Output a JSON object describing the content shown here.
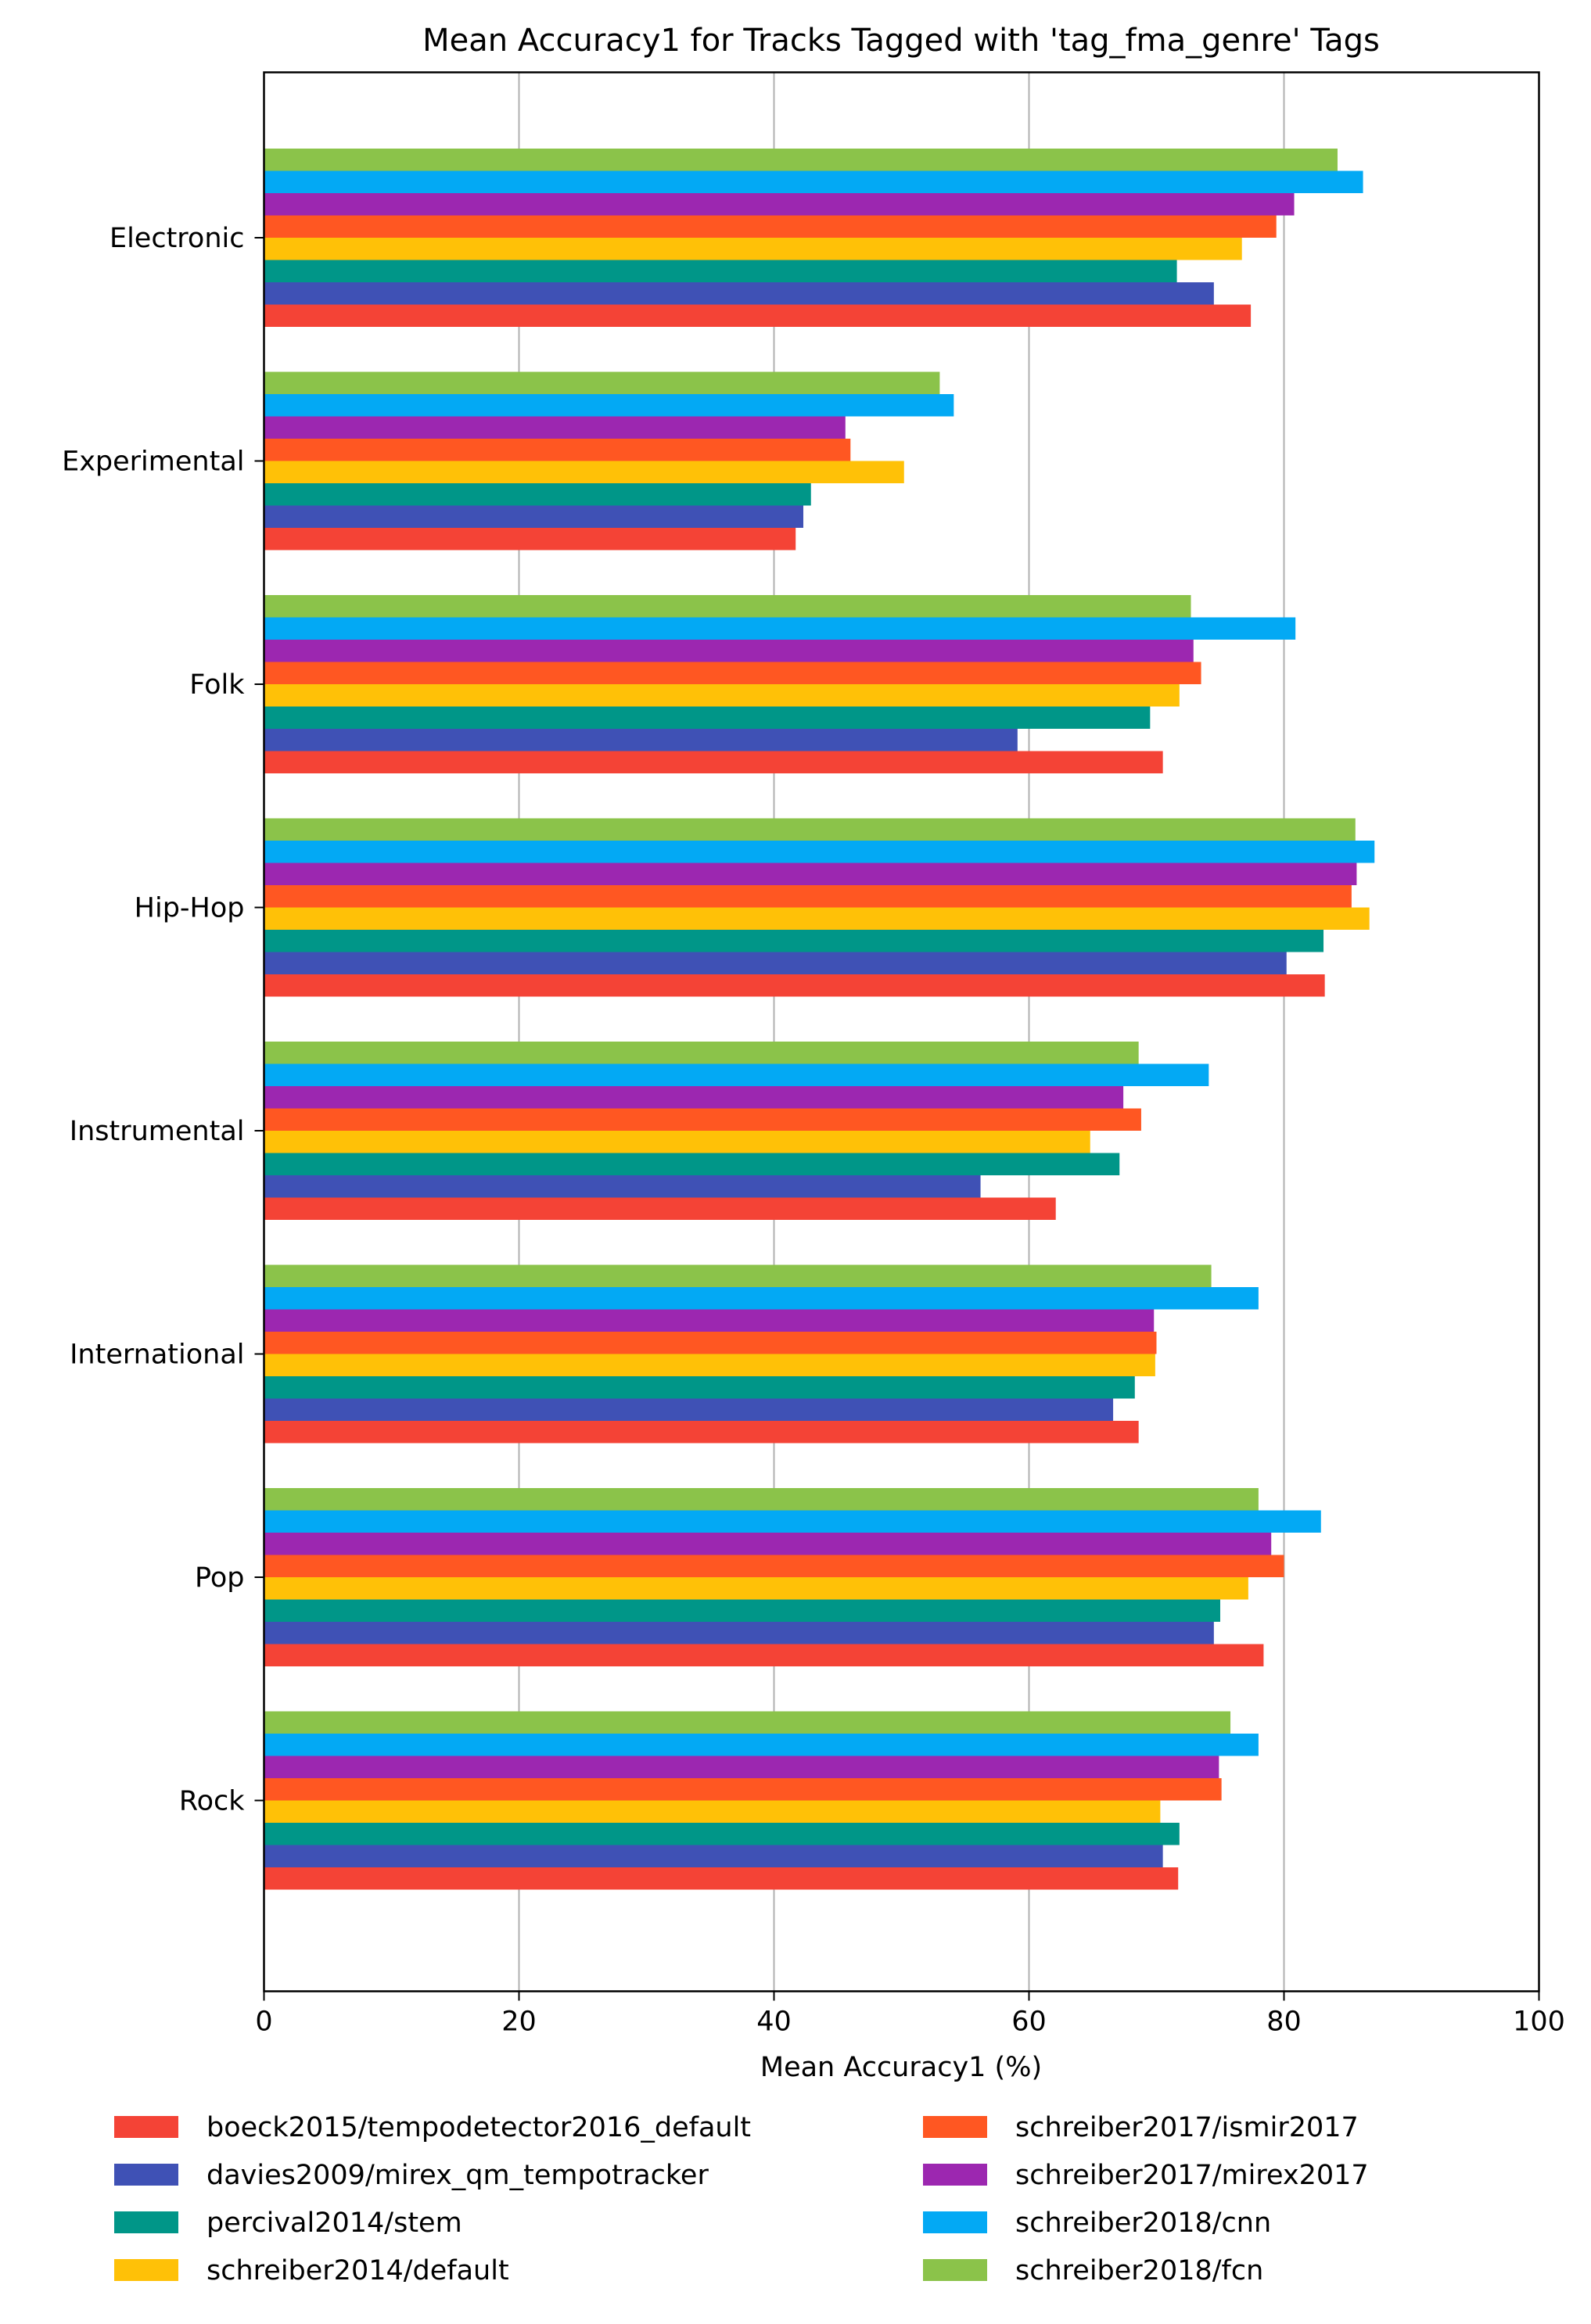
{
  "chart_data": {
    "type": "bar",
    "orientation": "horizontal",
    "title": "Mean Accuracy1 for Tracks Tagged with 'tag_fma_genre' Tags",
    "xlabel": "Mean Accuracy1 (%)",
    "ylabel": "",
    "xlim": [
      0,
      100
    ],
    "xticks": [
      "0",
      "20",
      "40",
      "60",
      "80",
      "100"
    ],
    "grid": "vertical gridlines",
    "legend_position": "bottom, 2 columns",
    "categories": [
      "Electronic",
      "Experimental",
      "Folk",
      "Hip-Hop",
      "Instrumental",
      "International",
      "Pop",
      "Rock"
    ],
    "series": [
      {
        "name": "boeck2015/tempodetector2016_default",
        "color": "#f44336",
        "values": [
          77.4,
          41.7,
          70.5,
          83.2,
          62.1,
          68.6,
          78.4,
          71.7
        ]
      },
      {
        "name": "davies2009/mirex_qm_tempotracker",
        "color": "#3f51b5",
        "values": [
          74.5,
          42.3,
          59.1,
          80.2,
          56.2,
          66.6,
          74.5,
          70.5
        ]
      },
      {
        "name": "percival2014/stem",
        "color": "#009688",
        "values": [
          71.6,
          42.9,
          69.5,
          83.1,
          67.1,
          68.3,
          75.0,
          71.8
        ]
      },
      {
        "name": "schreiber2014/default",
        "color": "#ffc107",
        "values": [
          76.7,
          50.2,
          71.8,
          86.7,
          64.8,
          69.9,
          77.2,
          70.3
        ]
      },
      {
        "name": "schreiber2017/ismir2017",
        "color": "#ff5722",
        "values": [
          79.4,
          46.0,
          73.5,
          85.3,
          68.8,
          70.0,
          80.0,
          75.1
        ]
      },
      {
        "name": "schreiber2017/mirex2017",
        "color": "#9c27b0",
        "values": [
          80.8,
          45.6,
          72.9,
          85.7,
          67.4,
          69.8,
          79.0,
          74.9
        ]
      },
      {
        "name": "schreiber2018/cnn",
        "color": "#03a9f4",
        "values": [
          86.2,
          54.1,
          80.9,
          87.1,
          74.1,
          78.0,
          82.9,
          78.0
        ]
      },
      {
        "name": "schreiber2018/fcn",
        "color": "#8bc34a",
        "values": [
          84.2,
          53.0,
          72.7,
          85.6,
          68.6,
          74.3,
          78.0,
          75.8
        ]
      }
    ]
  }
}
